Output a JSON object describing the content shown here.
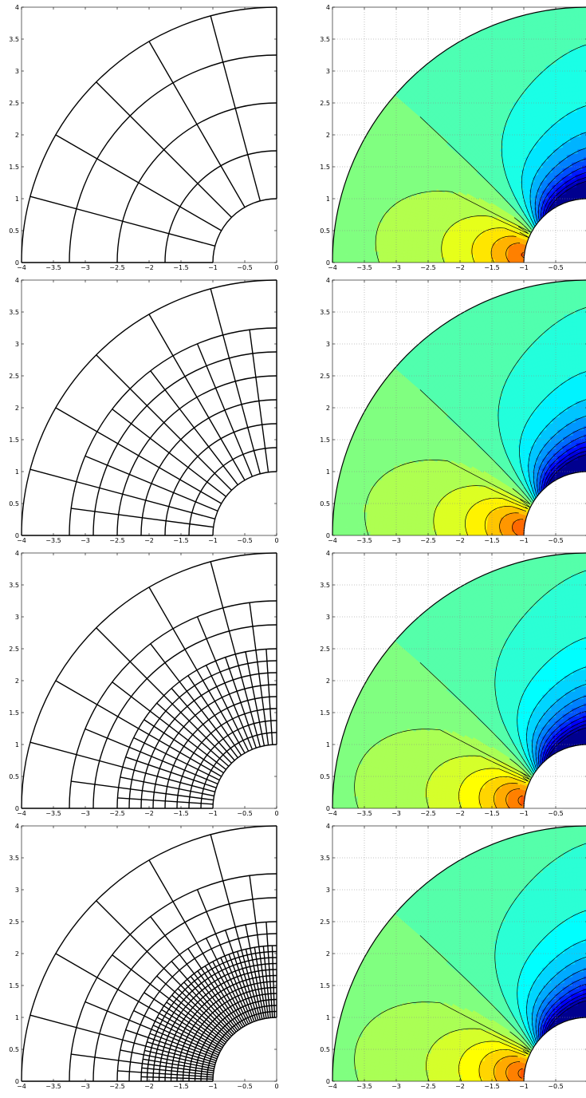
{
  "figure": {
    "x_ticks": [
      "−4",
      "−3.5",
      "−3",
      "−2.5",
      "−2",
      "−1.5",
      "−1",
      "−0.5",
      "0"
    ],
    "y_ticks": [
      "0",
      "0.5",
      "1",
      "1.5",
      "2",
      "2.5",
      "3",
      "3.5",
      "4"
    ],
    "x_range": [
      -4,
      0
    ],
    "y_range": [
      0,
      4
    ],
    "domain": {
      "inner_radius": 1,
      "outer_radius": 4
    },
    "rows": [
      {
        "mesh": {
          "ring_radii": [
            1,
            1.75,
            2.5,
            3.25,
            4
          ],
          "ray_angles_deg": [
            0,
            15,
            30,
            45,
            60,
            75,
            90
          ]
        },
        "contour": {
          "levels": 20,
          "gridlines": true
        }
      },
      {
        "mesh": {
          "ring_radii": [
            1,
            1.375,
            1.75,
            2.125,
            2.5,
            2.875,
            3.25,
            4
          ],
          "ray_angles_deg": [
            0,
            7.5,
            15,
            22.5,
            30,
            37.5,
            45,
            52.5,
            60,
            67.5,
            75,
            82.5,
            90
          ]
        },
        "contour": {
          "levels": 22,
          "gridlines": true
        }
      },
      {
        "mesh": {
          "ring_radii": [
            1,
            1.1875,
            1.375,
            1.5625,
            1.75,
            1.9375,
            2.125,
            2.3125,
            2.5,
            2.875,
            3.25,
            4
          ],
          "ray_angles_deg": [
            0,
            3.75,
            7.5,
            11.25,
            15,
            18.75,
            22.5,
            26.25,
            30,
            33.75,
            37.5,
            41.25,
            45,
            48.75,
            52.5,
            56.25,
            60,
            63.75,
            67.5,
            71.25,
            75,
            78.75,
            82.5,
            86.25,
            90
          ]
        },
        "contour": {
          "levels": 24,
          "gridlines": true
        }
      },
      {
        "mesh": {
          "ring_radii": [
            1,
            1.09375,
            1.1875,
            1.28125,
            1.375,
            1.46875,
            1.5625,
            1.65625,
            1.75,
            1.84375,
            1.9375,
            2.03125,
            2.125,
            2.3125,
            2.5,
            2.875,
            3.25,
            4
          ],
          "ray_angles_deg": [
            0,
            1.875,
            3.75,
            5.625,
            7.5,
            9.375,
            11.25,
            13.125,
            15,
            16.875,
            18.75,
            20.625,
            22.5,
            24.375,
            26.25,
            28.125,
            30,
            31.875,
            33.75,
            35.625,
            37.5,
            39.375,
            41.25,
            43.125,
            45,
            46.875,
            48.75,
            50.625,
            52.5,
            54.375,
            56.25,
            58.125,
            60,
            61.875,
            63.75,
            65.625,
            67.5,
            69.375,
            71.25,
            73.125,
            75,
            76.875,
            78.75,
            80.625,
            82.5,
            84.375,
            86.25,
            88.125,
            90
          ]
        },
        "contour": {
          "levels": 24,
          "gridlines": true
        }
      }
    ],
    "colormap": [
      "#00008f",
      "#0000ff",
      "#0080ff",
      "#00ffff",
      "#80ff80",
      "#ffff00",
      "#ff8000",
      "#ff0000",
      "#800000"
    ]
  }
}
